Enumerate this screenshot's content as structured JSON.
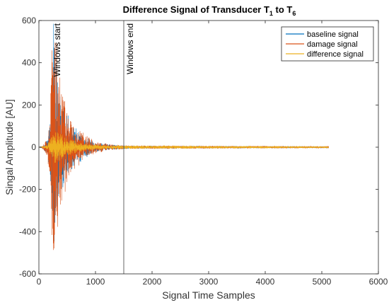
{
  "chart_data": {
    "type": "line",
    "title": {
      "main": "Difference Signal of Transducer T",
      "sub1": "1",
      "mid": " to T",
      "sub2": "6"
    },
    "xlabel": "Signal Time Samples",
    "ylabel": "Singal Amplitude [AU]",
    "xlim": [
      0,
      6000
    ],
    "ylim": [
      -600,
      600
    ],
    "xticks": [
      0,
      1000,
      2000,
      3000,
      4000,
      5000,
      6000
    ],
    "yticks": [
      -600,
      -400,
      -200,
      0,
      200,
      400,
      600
    ],
    "grid": false,
    "legend_position": "top-right",
    "signal_length": 5120,
    "series": [
      {
        "name": "baseline signal",
        "color": "#0072BD",
        "envelope": [
          {
            "x": 0,
            "amp": 0
          },
          {
            "x": 50,
            "amp": 3
          },
          {
            "x": 150,
            "amp": 30
          },
          {
            "x": 200,
            "amp": 140
          },
          {
            "x": 240,
            "amp": 480
          },
          {
            "x": 270,
            "amp": 520
          },
          {
            "x": 300,
            "amp": 380
          },
          {
            "x": 350,
            "amp": 260
          },
          {
            "x": 450,
            "amp": 160
          },
          {
            "x": 600,
            "amp": 90
          },
          {
            "x": 800,
            "amp": 45
          },
          {
            "x": 1000,
            "amp": 20
          },
          {
            "x": 1300,
            "amp": 10
          },
          {
            "x": 1600,
            "amp": 6
          },
          {
            "x": 5120,
            "amp": 3
          }
        ]
      },
      {
        "name": "damage signal",
        "color": "#D95319",
        "envelope": [
          {
            "x": 0,
            "amp": 0
          },
          {
            "x": 50,
            "amp": 3
          },
          {
            "x": 150,
            "amp": 35
          },
          {
            "x": 200,
            "amp": 160
          },
          {
            "x": 240,
            "amp": 500
          },
          {
            "x": 280,
            "amp": 540
          },
          {
            "x": 320,
            "amp": 400
          },
          {
            "x": 370,
            "amp": 280
          },
          {
            "x": 470,
            "amp": 170
          },
          {
            "x": 620,
            "amp": 95
          },
          {
            "x": 820,
            "amp": 50
          },
          {
            "x": 1000,
            "amp": 25
          },
          {
            "x": 1300,
            "amp": 12
          },
          {
            "x": 1600,
            "amp": 7
          },
          {
            "x": 5120,
            "amp": 4
          }
        ]
      },
      {
        "name": "difference signal",
        "color": "#EDB120",
        "envelope": [
          {
            "x": 0,
            "amp": 0
          },
          {
            "x": 50,
            "amp": 2
          },
          {
            "x": 150,
            "amp": 10
          },
          {
            "x": 220,
            "amp": 40
          },
          {
            "x": 280,
            "amp": 70
          },
          {
            "x": 350,
            "amp": 60
          },
          {
            "x": 500,
            "amp": 35
          },
          {
            "x": 800,
            "amp": 15
          },
          {
            "x": 1200,
            "amp": 8
          },
          {
            "x": 5120,
            "amp": 3
          }
        ]
      }
    ],
    "annotations": [
      {
        "text": "Windows start",
        "x": 200,
        "color": "#000000"
      },
      {
        "text": "Windows end",
        "x": 1500,
        "color": "#000000"
      }
    ]
  }
}
